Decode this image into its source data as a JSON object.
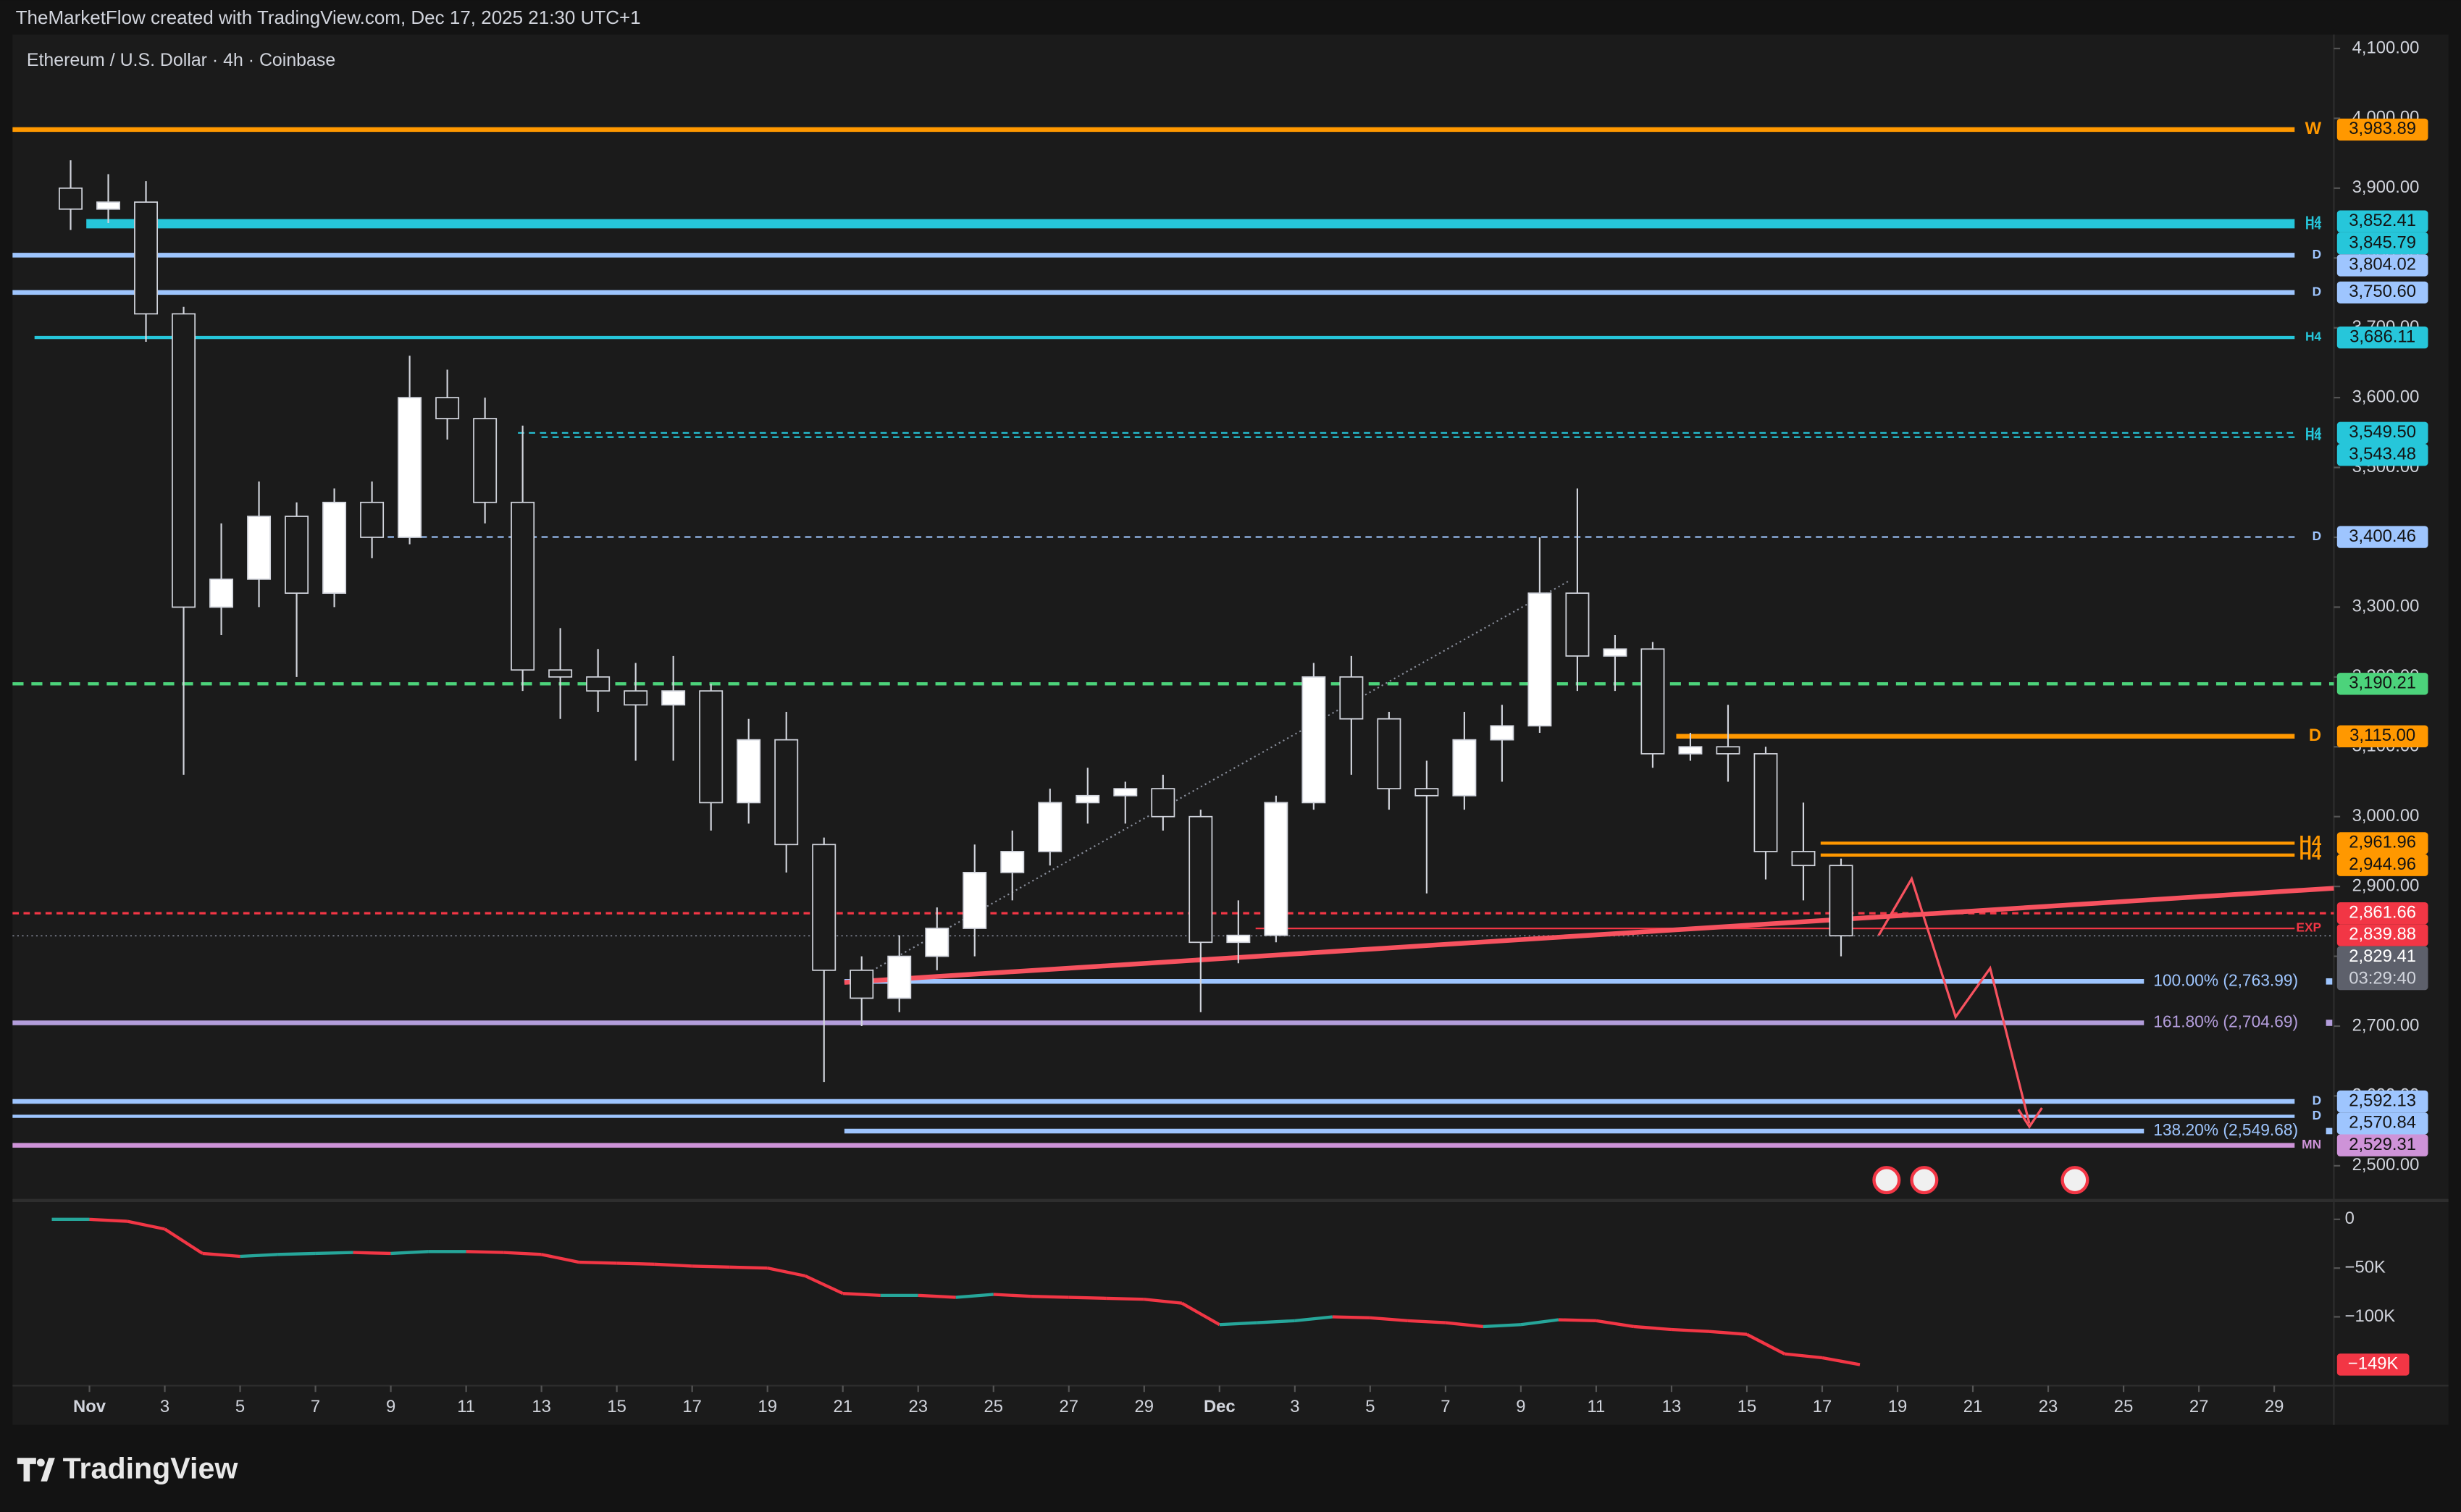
{
  "header": {
    "attribution": "TheMarketFlow created with TradingView.com, Dec 17, 2025 21:30 UTC+1",
    "symbol": "Ethereum / U.S. Dollar · 4h · Coinbase",
    "brand": "TradingView"
  },
  "chart_data": [
    {
      "type": "candlestick",
      "x": [
        "2025-10-31",
        "2025-11-01",
        "2025-11-02",
        "2025-11-03",
        "2025-11-04",
        "2025-11-05",
        "2025-11-06",
        "2025-11-07",
        "2025-11-08",
        "2025-11-09",
        "2025-11-10",
        "2025-11-11",
        "2025-11-12",
        "2025-11-13",
        "2025-11-14",
        "2025-11-15",
        "2025-11-16",
        "2025-11-17",
        "2025-11-18",
        "2025-11-19",
        "2025-11-20",
        "2025-11-21",
        "2025-11-22",
        "2025-11-23",
        "2025-11-24",
        "2025-11-25",
        "2025-11-26",
        "2025-11-27",
        "2025-11-28",
        "2025-11-29",
        "2025-11-30",
        "2025-12-01",
        "2025-12-02",
        "2025-12-03",
        "2025-12-04",
        "2025-12-05",
        "2025-12-06",
        "2025-12-07",
        "2025-12-08",
        "2025-12-09",
        "2025-12-10",
        "2025-12-11",
        "2025-12-12",
        "2025-12-13",
        "2025-12-14",
        "2025-12-15",
        "2025-12-16",
        "2025-12-17"
      ],
      "open": [
        3900,
        3870,
        3880,
        3720,
        3300,
        3340,
        3430,
        3320,
        3450,
        3400,
        3600,
        3570,
        3450,
        3210,
        3200,
        3180,
        3160,
        3180,
        3020,
        3110,
        2960,
        2780,
        2740,
        2800,
        2840,
        2920,
        2950,
        3020,
        3030,
        3040,
        3000,
        2820,
        2830,
        3020,
        3200,
        3140,
        3040,
        3030,
        3110,
        3130,
        3320,
        3230,
        3240,
        3090,
        3100,
        3090,
        2950,
        2930
      ],
      "high": [
        3940,
        3920,
        3910,
        3730,
        3420,
        3480,
        3450,
        3470,
        3480,
        3660,
        3640,
        3600,
        3560,
        3270,
        3240,
        3220,
        3230,
        3190,
        3140,
        3150,
        2970,
        2800,
        2830,
        2870,
        2960,
        2980,
        3040,
        3070,
        3050,
        3060,
        3010,
        2880,
        3030,
        3220,
        3230,
        3150,
        3080,
        3150,
        3160,
        3400,
        3470,
        3260,
        3250,
        3120,
        3160,
        3100,
        3020,
        2940
      ],
      "low": [
        3840,
        3850,
        3680,
        3060,
        3260,
        3300,
        3200,
        3300,
        3370,
        3390,
        3540,
        3420,
        3180,
        3140,
        3150,
        3080,
        3080,
        2980,
        2990,
        2920,
        2620,
        2700,
        2720,
        2780,
        2800,
        2880,
        2930,
        2990,
        2990,
        2980,
        2720,
        2790,
        2820,
        3010,
        3060,
        3010,
        2890,
        3010,
        3050,
        3120,
        3180,
        3180,
        3070,
        3080,
        3050,
        2910,
        2880,
        2800
      ],
      "close": [
        3870,
        3880,
        3720,
        3300,
        3340,
        3430,
        3320,
        3450,
        3400,
        3600,
        3570,
        3450,
        3210,
        3200,
        3180,
        3160,
        3180,
        3020,
        3110,
        2960,
        2780,
        2740,
        2800,
        2840,
        2920,
        2950,
        3020,
        3030,
        3040,
        3000,
        2820,
        2830,
        3020,
        3200,
        3140,
        3040,
        3030,
        3110,
        3130,
        3320,
        3230,
        3240,
        3090,
        3100,
        3090,
        2950,
        2930,
        2829.41
      ],
      "up_color": "#ffffff",
      "down_color": "#1b1b1b",
      "wick_color": "#d1d4dc",
      "xlim": [
        "2025-10-30",
        "2025-12-30"
      ],
      "xticks": [
        {
          "value": "2025-11-01",
          "label": "Nov"
        },
        {
          "value": "2025-11-03",
          "label": "3"
        },
        {
          "value": "2025-11-05",
          "label": "5"
        },
        {
          "value": "2025-11-07",
          "label": "7"
        },
        {
          "value": "2025-11-09",
          "label": "9"
        },
        {
          "value": "2025-11-11",
          "label": "11"
        },
        {
          "value": "2025-11-13",
          "label": "13"
        },
        {
          "value": "2025-11-15",
          "label": "15"
        },
        {
          "value": "2025-11-17",
          "label": "17"
        },
        {
          "value": "2025-11-19",
          "label": "19"
        },
        {
          "value": "2025-11-21",
          "label": "21"
        },
        {
          "value": "2025-11-23",
          "label": "23"
        },
        {
          "value": "2025-11-25",
          "label": "25"
        },
        {
          "value": "2025-11-27",
          "label": "27"
        },
        {
          "value": "2025-11-29",
          "label": "29"
        },
        {
          "value": "2025-12-01",
          "label": "Dec"
        },
        {
          "value": "2025-12-03",
          "label": "3"
        },
        {
          "value": "2025-12-05",
          "label": "5"
        },
        {
          "value": "2025-12-07",
          "label": "7"
        },
        {
          "value": "2025-12-09",
          "label": "9"
        },
        {
          "value": "2025-12-11",
          "label": "11"
        },
        {
          "value": "2025-12-13",
          "label": "13"
        },
        {
          "value": "2025-12-15",
          "label": "15"
        },
        {
          "value": "2025-12-17",
          "label": "17"
        },
        {
          "value": "2025-12-19",
          "label": "19"
        },
        {
          "value": "2025-12-21",
          "label": "21"
        },
        {
          "value": "2025-12-23",
          "label": "23"
        },
        {
          "value": "2025-12-25",
          "label": "25"
        },
        {
          "value": "2025-12-27",
          "label": "27"
        },
        {
          "value": "2025-12-29",
          "label": "29"
        }
      ],
      "ylim": [
        2457,
        4120
      ],
      "yticks": [
        {
          "value": 2500,
          "label": "2,500.00"
        },
        {
          "value": 2600,
          "label": "2,600.00"
        },
        {
          "value": 2700,
          "label": "2,700.00"
        },
        {
          "value": 2800,
          "label": "2,800.00"
        },
        {
          "value": 2900,
          "label": "2,900.00"
        },
        {
          "value": 3000,
          "label": "3,000.00"
        },
        {
          "value": 3100,
          "label": "3,100.00"
        },
        {
          "value": 3200,
          "label": "3,200.00"
        },
        {
          "value": 3300,
          "label": "3,300.00"
        },
        {
          "value": 3400,
          "label": "3,400.00"
        },
        {
          "value": 3500,
          "label": "3,500.00"
        },
        {
          "value": 3600,
          "label": "3,600.00"
        },
        {
          "value": 3700,
          "label": "3,700.00"
        },
        {
          "value": 3800,
          "label": "3,800.00"
        },
        {
          "value": 3900,
          "label": "3,900.00"
        },
        {
          "value": 4000,
          "label": "4,000.00"
        },
        {
          "value": 4100,
          "label": "4,100.00"
        }
      ],
      "price_lines": [
        {
          "value": 3983.89,
          "label": "3,983.89",
          "tag": "W",
          "color": "#ff9800",
          "style": "solid",
          "width": 3,
          "text_color": "#131313"
        },
        {
          "value": 3852.41,
          "label": "3,852.41",
          "tag": "H4",
          "color": "#26c6da",
          "style": "solid",
          "width": 3,
          "text_color": "#131313"
        },
        {
          "value": 3845.79,
          "label": "3,845.79",
          "tag": "H4",
          "color": "#26c6da",
          "style": "solid",
          "width": 3,
          "text_color": "#131313"
        },
        {
          "value": 3804.02,
          "label": "3,804.02",
          "tag": "D",
          "color": "#9ec5fe",
          "style": "solid",
          "width": 3,
          "text_color": "#131313"
        },
        {
          "value": 3750.6,
          "label": "3,750.60",
          "tag": "D",
          "color": "#9ec5fe",
          "style": "solid",
          "width": 3,
          "text_color": "#131313"
        },
        {
          "value": 3686.11,
          "label": "3,686.11",
          "tag": "H4",
          "color": "#26c6da",
          "style": "solid",
          "width": 2,
          "text_color": "#131313"
        },
        {
          "value": 3549.5,
          "label": "3,549.50",
          "tag": "H4",
          "color": "#26c6da",
          "style": "dashed",
          "width": 1,
          "text_color": "#131313"
        },
        {
          "value": 3543.48,
          "label": "3,543.48",
          "tag": "H4",
          "color": "#26c6da",
          "style": "dashed",
          "width": 1,
          "text_color": "#131313"
        },
        {
          "value": 3400.46,
          "label": "3,400.46",
          "tag": "D",
          "color": "#9ec5fe",
          "style": "dashed",
          "width": 1,
          "text_color": "#131313"
        },
        {
          "value": 3190.21,
          "label": "3,190.21",
          "color": "#4cd37b",
          "style": "dashed",
          "width": 2,
          "text_color": "#131313"
        },
        {
          "value": 3115.0,
          "label": "3,115.00",
          "tag": "D",
          "color": "#ff9800",
          "style": "solid",
          "width": 3,
          "text_color": "#131313"
        },
        {
          "value": 2961.96,
          "label": "2,961.96",
          "tag": "H4",
          "color": "#ff9800",
          "style": "solid",
          "width": 2,
          "text_color": "#131313"
        },
        {
          "value": 2944.96,
          "label": "2,944.96",
          "tag": "H4",
          "color": "#ff9800",
          "style": "solid",
          "width": 2,
          "text_color": "#131313"
        },
        {
          "value": 2861.66,
          "label": "2,861.66",
          "color": "#f23645",
          "style": "dashed",
          "width": 1.5,
          "text_color": "#ffffff"
        },
        {
          "value": 2839.88,
          "label": "2,839.88",
          "tag": "EXP",
          "color": "#f23645",
          "style": "solid",
          "width": 1,
          "text_color": "#ffffff"
        },
        {
          "value": 2592.13,
          "label": "2,592.13",
          "tag": "D",
          "color": "#9ec5fe",
          "style": "solid",
          "width": 3,
          "text_color": "#131313"
        },
        {
          "value": 2570.84,
          "label": "2,570.84",
          "tag": "D",
          "color": "#9ec5fe",
          "style": "solid",
          "width": 2,
          "text_color": "#131313"
        },
        {
          "value": 2529.31,
          "label": "2,529.31",
          "tag": "MN",
          "color": "#ce93d8",
          "style": "solid",
          "width": 3,
          "text_color": "#131313"
        }
      ],
      "fib_levels": [
        {
          "value": 2763.99,
          "label": "100.00% (2,763.99)",
          "color": "#9ec5fe"
        },
        {
          "value": 2704.69,
          "label": "161.80% (2,704.69)",
          "color": "#b39ddb"
        },
        {
          "value": 2549.68,
          "label": "138.20% (2,549.68)",
          "color": "#9ec5fe"
        }
      ],
      "last_price": {
        "value": 2829.41,
        "label": "2,829.41",
        "countdown": "03:29:40",
        "color": "#5d606b"
      }
    },
    {
      "type": "line",
      "values": [
        0,
        -2000,
        -10000,
        -35000,
        -38000,
        -36000,
        -35000,
        -34000,
        -35000,
        -33000,
        -33000,
        -34000,
        -36000,
        -44000,
        -45000,
        -46000,
        -48000,
        -49000,
        -50000,
        -58000,
        -76000,
        -78000,
        -78000,
        -80000,
        -77000,
        -79000,
        -80000,
        -81000,
        -82000,
        -86000,
        -108000,
        -106000,
        -104000,
        -100000,
        -101000,
        -104000,
        -106000,
        -110000,
        -108000,
        -103000,
        -104000,
        -110000,
        -113000,
        -115000,
        -118000,
        -138000,
        -142000,
        -149000
      ],
      "last_label": "−149K",
      "up_color": "#26a69a",
      "down_color": "#f23645",
      "ylim": [
        -169000,
        14500
      ],
      "yticks": [
        0,
        {
          "value": -50000,
          "label": "−50K"
        },
        {
          "value": -100000,
          "label": "−100K"
        }
      ]
    }
  ]
}
